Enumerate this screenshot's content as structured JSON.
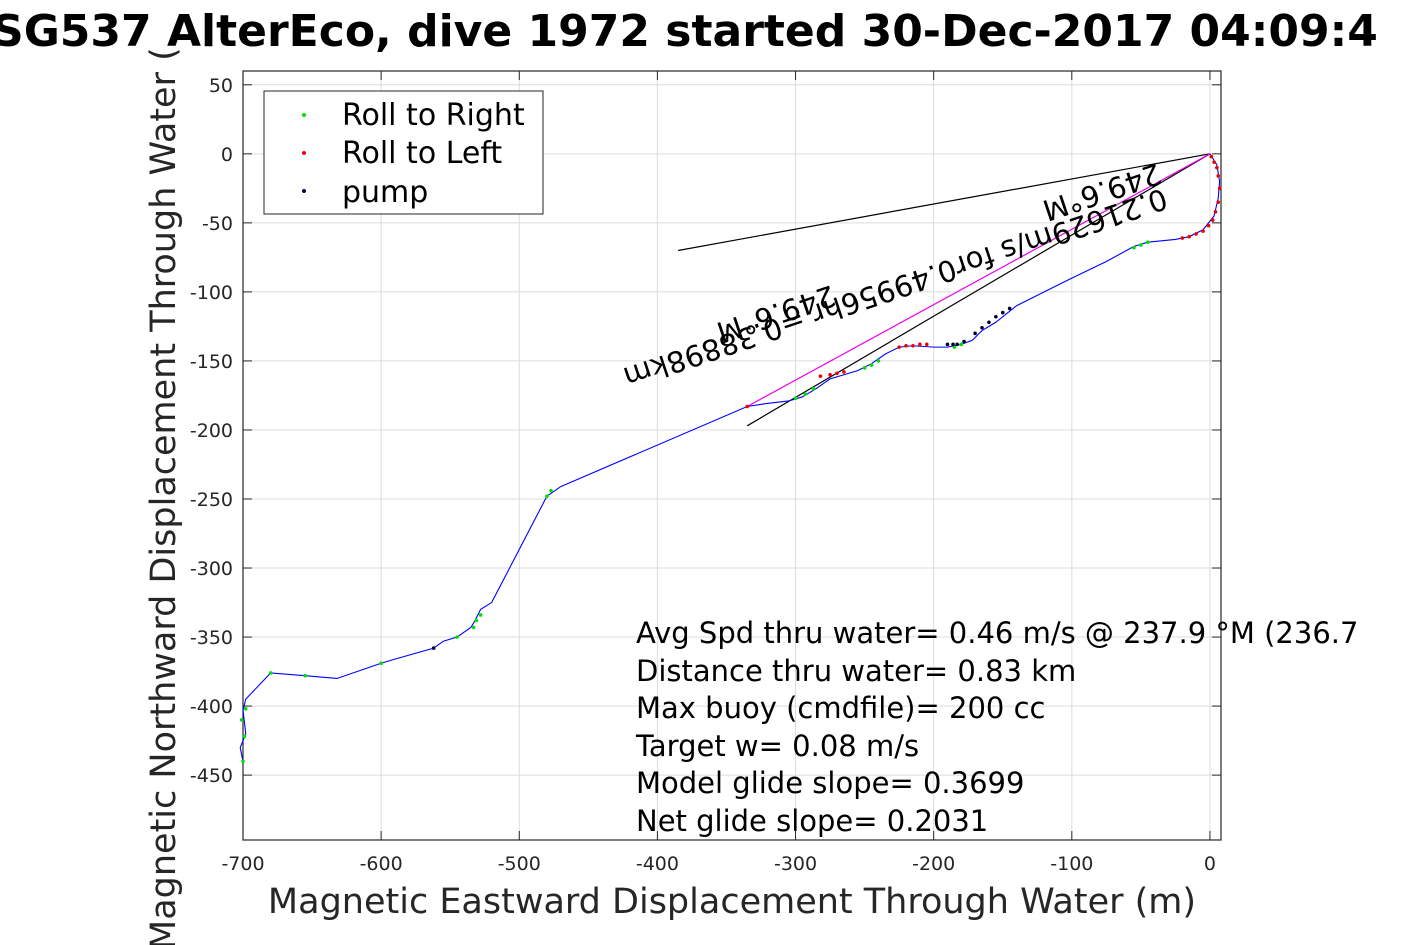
{
  "chart_data": {
    "type": "line",
    "title": "SG537 AlterEco, dive 1972 started 30-Dec-2017 04:09:4",
    "xlabel": "Magnetic Eastward Displacement Through Water (m)",
    "ylabel": "Magnetic Northward Displacement Through Water (",
    "xlim": [
      -700,
      8
    ],
    "ylim": [
      -497,
      60
    ],
    "xticks": [
      -700,
      -600,
      -500,
      -400,
      -300,
      -200,
      -100,
      0
    ],
    "yticks": [
      50,
      0,
      -50,
      -100,
      -150,
      -200,
      -250,
      -300,
      -350,
      -400,
      -450
    ],
    "grid": true,
    "legend": {
      "placement": "top-left",
      "entries": [
        {
          "label": "Roll to Right",
          "color": "#00e000"
        },
        {
          "label": "Roll to Left",
          "color": "#ff0000"
        },
        {
          "label": "pump",
          "color": "#000033"
        }
      ]
    },
    "track": {
      "color": "#0000ff",
      "x": [
        0,
        5,
        7,
        6,
        3,
        -5,
        -15,
        -25,
        -35,
        -45,
        -55,
        -75,
        -100,
        -120,
        -140,
        -155,
        -165,
        -172,
        -180,
        -190,
        -200,
        -215,
        -225,
        -235,
        -245,
        -255,
        -265,
        -275,
        -285,
        -295,
        -305,
        -322,
        -335,
        -470,
        -480,
        -520,
        -528,
        -532,
        -535,
        -545,
        -555,
        -562,
        -590,
        -600,
        -632,
        -655,
        -680,
        -698,
        -700,
        -698,
        -702,
        -700
      ],
      "y": [
        0,
        -8,
        -20,
        -32,
        -45,
        -55,
        -60,
        -62,
        -63,
        -64,
        -67,
        -78,
        -90,
        -100,
        -110,
        -122,
        -128,
        -135,
        -138,
        -140,
        -140,
        -139,
        -140,
        -145,
        -152,
        -157,
        -160,
        -163,
        -170,
        -176,
        -179,
        -181,
        -183,
        -241,
        -248,
        -325,
        -330,
        -338,
        -343,
        -350,
        -353,
        -358,
        -366,
        -369,
        -380,
        -378,
        -376,
        -395,
        -403,
        -420,
        -430,
        -440
      ]
    },
    "magenta_track": {
      "color": "#ee00ee",
      "x": [
        0,
        -335
      ],
      "y": [
        0,
        -183
      ]
    },
    "black_lines": [
      {
        "x": [
          0,
          -385
        ],
        "y": [
          0,
          -70
        ]
      },
      {
        "x": [
          0,
          -335
        ],
        "y": [
          0,
          -197
        ]
      }
    ],
    "roll_right": {
      "x": [
        -700,
        -701,
        -699,
        -698,
        -655,
        -680,
        -600,
        -545,
        -533,
        -531,
        -528,
        -480,
        -477,
        -300,
        -293,
        -287,
        -250,
        -245,
        -240,
        -185,
        -180,
        -55,
        -50,
        -45
      ],
      "y": [
        -440,
        -410,
        -422,
        -402,
        -378,
        -376,
        -369,
        -350,
        -343,
        -338,
        -334,
        -248,
        -244,
        -177,
        -174,
        -170,
        -155,
        -153,
        -150,
        -140,
        -138,
        -68,
        -66,
        -64
      ]
    },
    "roll_left": {
      "x": [
        1,
        3,
        5,
        6,
        7,
        6,
        4,
        2,
        -1,
        -5,
        -10,
        -15,
        -20,
        -265,
        -270,
        -275,
        -282,
        -205,
        -210,
        -215,
        -220,
        -225,
        -335
      ],
      "y": [
        -2,
        -6,
        -10,
        -16,
        -25,
        -35,
        -42,
        -48,
        -52,
        -56,
        -58,
        -60,
        -61,
        -158,
        -159,
        -160,
        -161,
        -138,
        -138,
        -139,
        -139,
        -140,
        -183
      ]
    },
    "pump": {
      "x": [
        -562,
        -190,
        -186,
        -183,
        -178,
        -170,
        -165,
        -160,
        -155,
        -150,
        -145
      ],
      "y": [
        -358,
        -138,
        -138,
        -138,
        -136,
        -130,
        -126,
        -122,
        -118,
        -115,
        -112
      ]
    },
    "annotations": {
      "summary_lines": [
        "Avg Spd thru water=  0.46 m/s @ 237.9 °M (236.7",
        "Distance thru water=  0.83 km",
        "Max buoy (cmdfile)= 200 cc",
        "Target w= 0.08 m/s",
        "Model glide slope= 0.3699",
        "Net glide slope= 0.2031"
      ],
      "rotated_1": "0.21629m/s for0.49956hr =0.38898km",
      "rotated_2": "249.6°M",
      "rotated_3": "249.6°M"
    }
  }
}
